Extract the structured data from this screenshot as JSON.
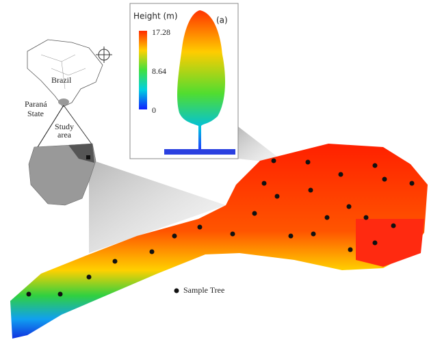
{
  "inset": {
    "title": "Height (m)",
    "label": "(a)",
    "colorbar": {
      "ticks": [
        17.28,
        8.64,
        0
      ]
    }
  },
  "map": {
    "country": "Brazil",
    "state": [
      "Paraná",
      "State"
    ],
    "study_area": [
      "Study",
      "area"
    ]
  },
  "legend": {
    "label": "Sample Tree"
  }
}
